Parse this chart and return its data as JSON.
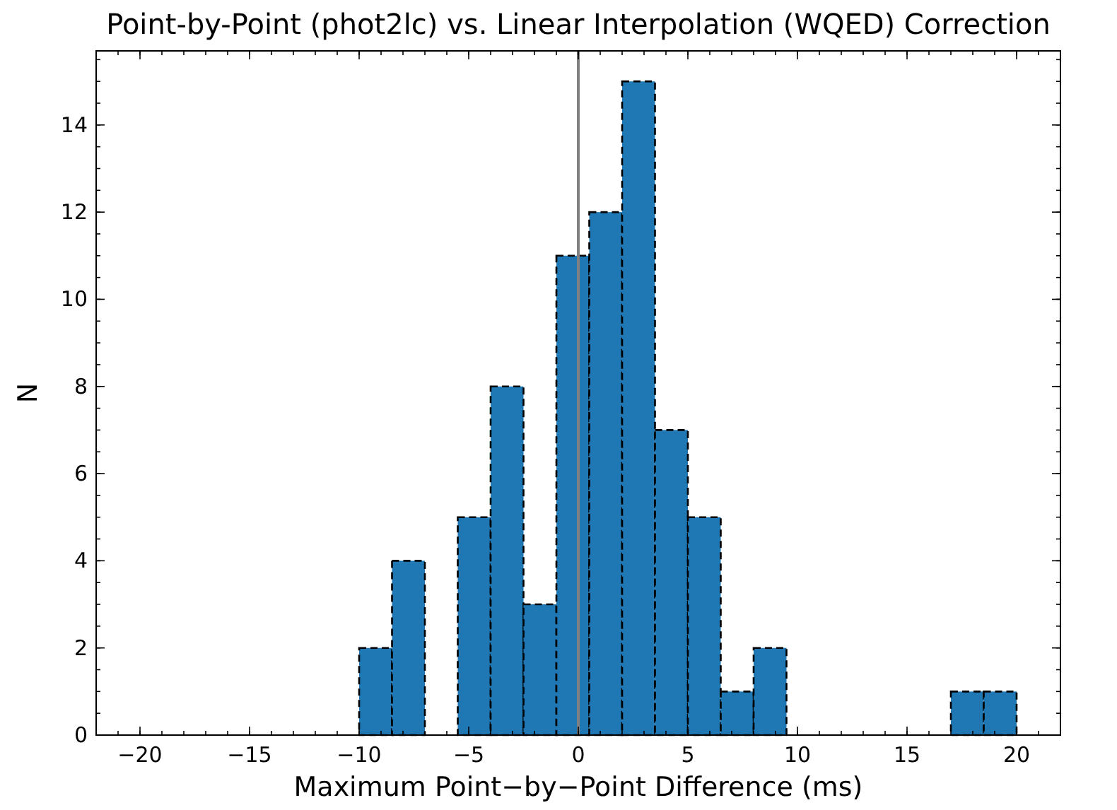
{
  "chart_data": {
    "type": "histogram",
    "title": "Point-by-Point (phot2lc) vs. Linear Interpolation (WQED) Correction",
    "xlabel": "Maximum Point−by−Point Difference (ms)",
    "ylabel": "N",
    "bins": [
      -10,
      -8.5,
      -7,
      -5.5,
      -4,
      -2.5,
      -1,
      0.5,
      2,
      3.5,
      5,
      6.5,
      8,
      9.5,
      11,
      12.5,
      14,
      15.5,
      17,
      18.5,
      20
    ],
    "values": [
      2,
      4,
      0,
      5,
      8,
      3,
      11,
      12,
      15,
      7,
      5,
      1,
      2,
      0,
      0,
      0,
      0,
      0,
      1,
      1
    ],
    "color": "#1f77b4",
    "line_style": "dashed",
    "xlim": [
      -22,
      22
    ],
    "xticks": [
      -20,
      -15,
      -10,
      -5,
      0,
      5,
      10,
      15,
      20
    ],
    "ylim": [
      0,
      15.7
    ],
    "yticks": [
      0,
      2,
      4,
      6,
      8,
      10,
      12,
      14
    ],
    "ref_lines": [
      {
        "axis": "x",
        "value": 0,
        "color": "#808080"
      }
    ],
    "grid": false,
    "legend": false
  }
}
